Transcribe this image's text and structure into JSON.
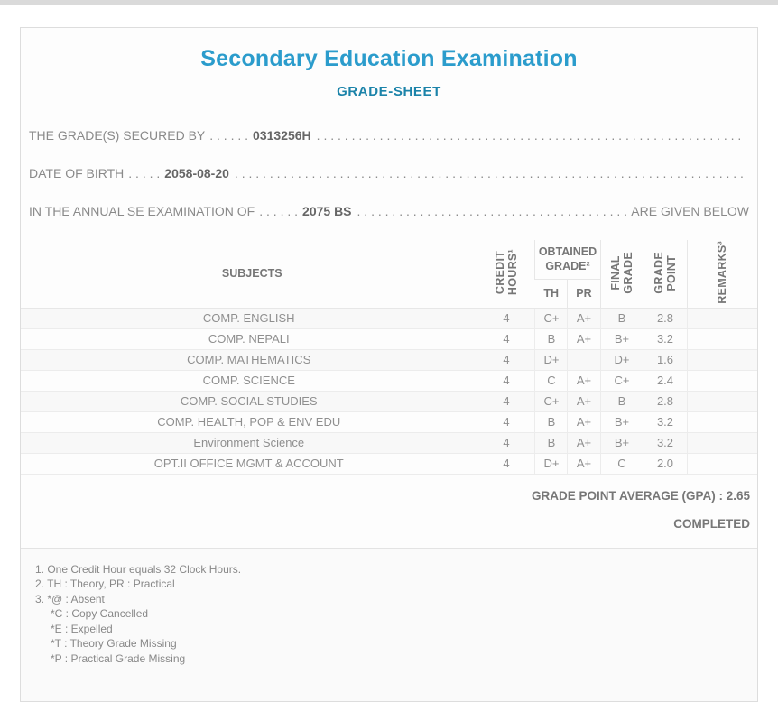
{
  "page": {
    "top_strip_color": "#dadada",
    "card_border_color": "#dddddd"
  },
  "colors": {
    "title": "#2b9ccc",
    "subtitle": "#1b83a9",
    "body_text": "#8a8a8a",
    "value_text": "#666666"
  },
  "header": {
    "title": "Secondary Education Examination",
    "subtitle": "GRADE-SHEET"
  },
  "leader_dots": ". . . . . . . . . . . . . . . . . . . . . . . . . . . . . . . . . . . . . . . . . . . . . . . . . . . . . . . . . . . . . . . . . . . . . . . . . . . . . . . . . . . . . . . . . . . . . . . . . . . . . . . . . . . . . . . . . . . . . . . . . . . . . . . . . . . . . . . .",
  "info_lines": [
    {
      "label": "THE GRADE(S) SECURED BY",
      "pre_dots": ". . . . . .",
      "value": "0313256H",
      "suffix": ""
    },
    {
      "label": "DATE OF BIRTH",
      "pre_dots": ". . . . .",
      "value": "2058-08-20",
      "suffix": ""
    },
    {
      "label": "IN THE ANNUAL SE EXAMINATION OF",
      "pre_dots": ". . . . . .",
      "value": "2075 BS",
      "suffix": "ARE GIVEN BELOW"
    }
  ],
  "table": {
    "headers": {
      "subjects": "SUBJECTS",
      "credit_hours": [
        "CREDIT",
        "HOURS¹"
      ],
      "obtained_grade": [
        "OBTAINED",
        "GRADE²"
      ],
      "th": "TH",
      "pr": "PR",
      "final_grade": [
        "FINAL",
        "GRADE"
      ],
      "grade_point": [
        "GRADE",
        "POINT"
      ],
      "remarks": [
        "REMARKS³"
      ]
    },
    "rows": [
      {
        "subject": "COMP. ENGLISH",
        "credit": "4",
        "th": "C+",
        "pr": "A+",
        "final": "B",
        "gp": "2.8",
        "remarks": ""
      },
      {
        "subject": "COMP. NEPALI",
        "credit": "4",
        "th": "B",
        "pr": "A+",
        "final": "B+",
        "gp": "3.2",
        "remarks": ""
      },
      {
        "subject": "COMP. MATHEMATICS",
        "credit": "4",
        "th": "D+",
        "pr": "",
        "final": "D+",
        "gp": "1.6",
        "remarks": ""
      },
      {
        "subject": "COMP. SCIENCE",
        "credit": "4",
        "th": "C",
        "pr": "A+",
        "final": "C+",
        "gp": "2.4",
        "remarks": ""
      },
      {
        "subject": "COMP. SOCIAL STUDIES",
        "credit": "4",
        "th": "C+",
        "pr": "A+",
        "final": "B",
        "gp": "2.8",
        "remarks": ""
      },
      {
        "subject": "COMP. HEALTH, POP & ENV EDU",
        "credit": "4",
        "th": "B",
        "pr": "A+",
        "final": "B+",
        "gp": "3.2",
        "remarks": ""
      },
      {
        "subject": "Environment Science",
        "credit": "4",
        "th": "B",
        "pr": "A+",
        "final": "B+",
        "gp": "3.2",
        "remarks": ""
      },
      {
        "subject": "OPT.II OFFICE MGMT & ACCOUNT",
        "credit": "4",
        "th": "D+",
        "pr": "A+",
        "final": "C",
        "gp": "2.0",
        "remarks": ""
      }
    ]
  },
  "summary": {
    "gpa_label": "GRADE POINT AVERAGE (GPA) : 2.65",
    "status": "COMPLETED"
  },
  "footnotes": {
    "items": [
      "1. One Credit Hour equals 32 Clock Hours.",
      "2. TH : Theory, PR : Practical",
      "3. *@ : Absent"
    ],
    "sub_items": [
      "*C : Copy Cancelled",
      "*E : Expelled",
      "*T : Theory Grade Missing",
      "*P : Practical Grade Missing"
    ]
  }
}
